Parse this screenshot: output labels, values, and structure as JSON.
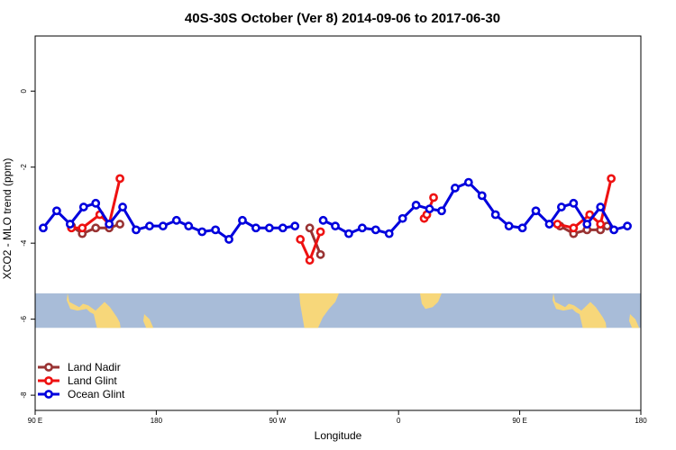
{
  "chart_data": {
    "type": "line",
    "title": "40S-30S October (Ver 8)   2014-09-06 to 2017-06-30",
    "xlabel": "Longitude",
    "ylabel": "XCO2 - MLO trend (ppm)",
    "x_ticks": [
      {
        "value": 90,
        "label": "90 E"
      },
      {
        "value": 180,
        "label": "180"
      },
      {
        "value": 270,
        "label": "90 W"
      },
      {
        "value": 360,
        "label": "0"
      },
      {
        "value": 450,
        "label": "90 E"
      },
      {
        "value": 540,
        "label": "180"
      }
    ],
    "y_ticks": [
      {
        "value": 0,
        "label": "0"
      },
      {
        "value": -2,
        "label": "-2"
      },
      {
        "value": -4,
        "label": "-4"
      },
      {
        "value": -6,
        "label": "-6"
      },
      {
        "value": -8,
        "label": "-8"
      }
    ],
    "xlim": [
      90,
      540
    ],
    "ylim": [
      -8.4,
      1.45
    ],
    "grid": false,
    "legend_position": "bottom-left",
    "map_band": {
      "ylim": [
        -6.23,
        -5.32
      ],
      "ocean_color": "#a8bcd8",
      "land_color": "#f7d77a"
    },
    "series": [
      {
        "name": "Land Nadir",
        "color": "#993333",
        "segments": [
          [
            [
              117,
              -3.55
            ],
            [
              125,
              -3.75
            ],
            [
              135,
              -3.6
            ],
            [
              145,
              -3.6
            ],
            [
              153,
              -3.5
            ]
          ],
          [
            [
              294,
              -3.6
            ],
            [
              302,
              -4.3
            ]
          ],
          [
            [
              480,
              -3.55
            ],
            [
              490,
              -3.75
            ],
            [
              500,
              -3.65
            ],
            [
              510,
              -3.65
            ],
            [
              515,
              -3.55
            ]
          ]
        ]
      },
      {
        "name": "Land Glint",
        "color": "#ee1111",
        "segments": [
          [
            [
              117,
              -3.6
            ],
            [
              125,
              -3.6
            ],
            [
              138,
              -3.25
            ],
            [
              145,
              -3.5
            ],
            [
              153,
              -2.3
            ]
          ],
          [
            [
              287,
              -3.9
            ],
            [
              294,
              -4.45
            ],
            [
              302,
              -3.7
            ]
          ],
          [
            [
              379,
              -3.35
            ],
            [
              381,
              -3.25
            ],
            [
              386,
              -2.8
            ]
          ],
          [
            [
              478,
              -3.5
            ],
            [
              490,
              -3.6
            ],
            [
              502,
              -3.25
            ],
            [
              510,
              -3.5
            ],
            [
              518,
              -2.3
            ]
          ]
        ]
      },
      {
        "name": "Ocean Glint",
        "color": "#0000dd",
        "segments": [
          [
            [
              96,
              -3.6
            ],
            [
              106,
              -3.15
            ],
            [
              116,
              -3.5
            ],
            [
              126,
              -3.05
            ],
            [
              135,
              -2.95
            ],
            [
              145,
              -3.5
            ],
            [
              155,
              -3.05
            ],
            [
              165,
              -3.65
            ],
            [
              175,
              -3.55
            ],
            [
              185,
              -3.55
            ],
            [
              195,
              -3.4
            ],
            [
              204,
              -3.55
            ],
            [
              214,
              -3.7
            ],
            [
              224,
              -3.65
            ],
            [
              234,
              -3.9
            ],
            [
              244,
              -3.4
            ],
            [
              254,
              -3.6
            ],
            [
              264,
              -3.6
            ],
            [
              274,
              -3.6
            ],
            [
              283,
              -3.55
            ]
          ],
          [
            [
              304,
              -3.4
            ],
            [
              313,
              -3.55
            ],
            [
              323,
              -3.75
            ],
            [
              333,
              -3.6
            ],
            [
              343,
              -3.65
            ],
            [
              353,
              -3.75
            ],
            [
              363,
              -3.35
            ],
            [
              373,
              -3.0
            ],
            [
              383,
              -3.1
            ],
            [
              392,
              -3.15
            ],
            [
              402,
              -2.55
            ],
            [
              412,
              -2.4
            ],
            [
              422,
              -2.75
            ],
            [
              432,
              -3.25
            ],
            [
              442,
              -3.55
            ],
            [
              452,
              -3.6
            ],
            [
              462,
              -3.15
            ],
            [
              472,
              -3.5
            ],
            [
              481,
              -3.05
            ],
            [
              490,
              -2.95
            ],
            [
              500,
              -3.5
            ],
            [
              510,
              -3.05
            ],
            [
              520,
              -3.65
            ],
            [
              530,
              -3.55
            ]
          ]
        ]
      }
    ]
  }
}
